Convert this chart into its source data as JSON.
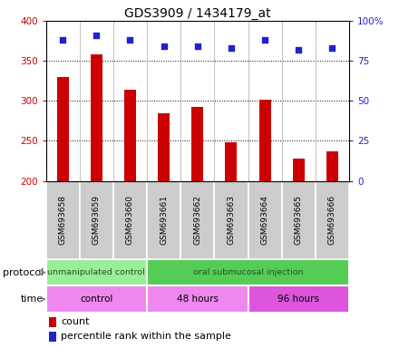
{
  "title": "GDS3909 / 1434179_at",
  "samples": [
    "GSM693658",
    "GSM693659",
    "GSM693660",
    "GSM693661",
    "GSM693662",
    "GSM693663",
    "GSM693664",
    "GSM693665",
    "GSM693666"
  ],
  "counts": [
    330,
    358,
    314,
    285,
    293,
    248,
    302,
    228,
    237
  ],
  "percentile_ranks": [
    88,
    91,
    88,
    84,
    84,
    83,
    88,
    82,
    83
  ],
  "ylim_left": [
    200,
    400
  ],
  "ylim_right": [
    0,
    100
  ],
  "yticks_left": [
    200,
    250,
    300,
    350,
    400
  ],
  "yticks_right": [
    0,
    25,
    50,
    75,
    100
  ],
  "bar_color": "#cc0000",
  "dot_color": "#2222cc",
  "bar_bottom": 200,
  "bar_width": 0.35,
  "protocol_groups": [
    {
      "label": "unmanipulated control",
      "start": 0,
      "end": 3,
      "color": "#99ee99"
    },
    {
      "label": "oral submucosal injection",
      "start": 3,
      "end": 9,
      "color": "#55cc55"
    }
  ],
  "time_groups": [
    {
      "label": "control",
      "start": 0,
      "end": 3,
      "color": "#ee88ee"
    },
    {
      "label": "48 hours",
      "start": 3,
      "end": 6,
      "color": "#ee88ee"
    },
    {
      "label": "96 hours",
      "start": 6,
      "end": 9,
      "color": "#dd55dd"
    }
  ],
  "legend_count_label": "count",
  "legend_pct_label": "percentile rank within the sample",
  "protocol_label": "protocol",
  "time_label": "time",
  "background_color": "#ffffff",
  "tick_label_color_left": "#cc0000",
  "tick_label_color_right": "#2222cc",
  "sample_box_color": "#cccccc",
  "divider_color": "#aaaaaa"
}
